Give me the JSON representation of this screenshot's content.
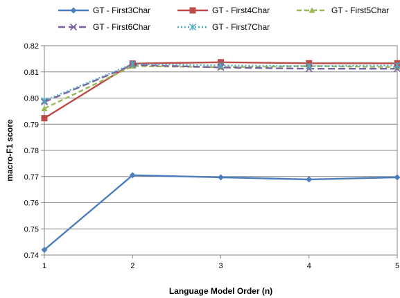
{
  "chart_data": {
    "type": "line",
    "xlabel": "Language Model Order (n)",
    "ylabel": "macro-F1 score",
    "x": [
      1,
      2,
      3,
      4,
      5
    ],
    "ylim": [
      0.74,
      0.82
    ],
    "yticks": [
      "0.74",
      "0.75",
      "0.76",
      "0.77",
      "0.78",
      "0.79",
      "0.80",
      "0.81",
      "0.82"
    ],
    "xticks": [
      "1",
      "2",
      "3",
      "4",
      "5"
    ],
    "grid": "horizontal",
    "legend_position": "top",
    "series": [
      {
        "name": "GT - First3Char",
        "values": [
          0.742,
          0.7705,
          0.7697,
          0.7689,
          0.7697
        ],
        "color": "#4a7ebb",
        "dash": "solid",
        "marker": "diamond"
      },
      {
        "name": "GT - First4Char",
        "values": [
          0.7923,
          0.8132,
          0.8137,
          0.8133,
          0.8133
        ],
        "color": "#be4b48",
        "dash": "solid",
        "marker": "square"
      },
      {
        "name": "GT - First5Char",
        "values": [
          0.796,
          0.8122,
          0.8118,
          0.8122,
          0.8118
        ],
        "color": "#98b954",
        "dash": "dashed",
        "marker": "triangle"
      },
      {
        "name": "GT - First6Char",
        "values": [
          0.7985,
          0.8127,
          0.8117,
          0.8112,
          0.8112
        ],
        "color": "#7d60a0",
        "dash": "longdash",
        "marker": "x"
      },
      {
        "name": "GT - First7Char",
        "values": [
          0.799,
          0.813,
          0.8125,
          0.8122,
          0.8125
        ],
        "color": "#4bacc6",
        "dash": "dotted",
        "marker": "star"
      }
    ]
  }
}
